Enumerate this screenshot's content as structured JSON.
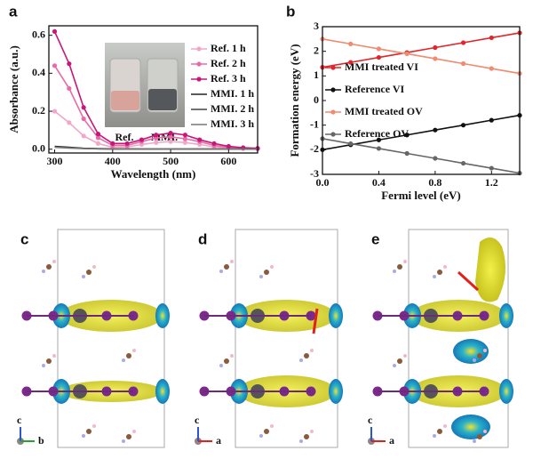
{
  "chart_data": [
    {
      "type": "line",
      "label": "a",
      "xlabel": "Wavelength (nm)",
      "ylabel": "Absorbance (a.u.)",
      "x": [
        300,
        325,
        350,
        375,
        400,
        425,
        450,
        475,
        500,
        525,
        550,
        575,
        600,
        625,
        650
      ],
      "series": [
        {
          "name": "Ref. 1 h",
          "color": "#f2a7c8",
          "marker": "o",
          "values": [
            0.2,
            0.14,
            0.07,
            0.03,
            0.01,
            0.012,
            0.025,
            0.035,
            0.04,
            0.035,
            0.025,
            0.012,
            0.006,
            0.003,
            0.002
          ]
        },
        {
          "name": "Ref. 2 h",
          "color": "#e86aa6",
          "marker": "o",
          "values": [
            0.44,
            0.32,
            0.16,
            0.06,
            0.02,
            0.02,
            0.04,
            0.06,
            0.065,
            0.055,
            0.04,
            0.02,
            0.01,
            0.005,
            0.003
          ]
        },
        {
          "name": "Ref. 3 h",
          "color": "#c8177a",
          "marker": "o",
          "values": [
            0.62,
            0.45,
            0.22,
            0.08,
            0.03,
            0.03,
            0.05,
            0.075,
            0.085,
            0.075,
            0.05,
            0.03,
            0.015,
            0.008,
            0.005
          ]
        },
        {
          "name": "MMI. 1 h",
          "color": "#222222",
          "values": [
            0.015,
            0.01,
            0.005,
            0.003,
            0.002,
            0.002,
            0.001,
            0.001,
            0.001,
            0.001,
            0.001,
            0.001,
            0.001,
            0.001,
            0.001
          ]
        },
        {
          "name": "MMI. 2 h",
          "color": "#444444",
          "values": [
            0.012,
            0.008,
            0.004,
            0.002,
            0.001,
            0.001,
            0.001,
            0.001,
            0.001,
            0.001,
            0.001,
            0.001,
            0.001,
            0.001,
            0.001
          ]
        },
        {
          "name": "MMI. 3 h",
          "color": "#777777",
          "values": [
            0.01,
            0.006,
            0.003,
            0.002,
            0.001,
            0.001,
            0.001,
            0.001,
            0.001,
            0.001,
            0.001,
            0.001,
            0.001,
            0.001,
            0.001
          ]
        }
      ],
      "annotations": [
        "Ref.",
        "MMI."
      ],
      "xlim": [
        290,
        650
      ],
      "xticks": [
        300,
        400,
        500,
        600
      ],
      "ylim": [
        -0.02,
        0.65
      ],
      "yticks": [
        {
          "value": 0,
          "label": "0.0"
        },
        0.2,
        0.4,
        0.6
      ],
      "legend": "upper right"
    },
    {
      "type": "line",
      "label": "b",
      "xlabel": "Fermi level (eV)",
      "ylabel": "Formation energy (eV)",
      "x": [
        0,
        0.2,
        0.4,
        0.6,
        0.8,
        1.0,
        1.2,
        1.4
      ],
      "series": [
        {
          "name": "MMI treated VI",
          "color": "#e0262a",
          "marker": "o",
          "values": [
            1.35,
            1.55,
            1.75,
            1.95,
            2.15,
            2.35,
            2.55,
            2.75
          ]
        },
        {
          "name": "Reference VI",
          "color": "#111111",
          "marker": "o",
          "values": [
            -2.0,
            -1.8,
            -1.6,
            -1.4,
            -1.2,
            -1.0,
            -0.8,
            -0.6
          ]
        },
        {
          "name": "MMI treated OV",
          "color": "#f08a70",
          "marker": "o",
          "values": [
            2.5,
            2.3,
            2.1,
            1.9,
            1.7,
            1.5,
            1.3,
            1.1
          ]
        },
        {
          "name": "Reference OV",
          "color": "#666666",
          "marker": "o",
          "values": [
            -1.55,
            -1.75,
            -1.95,
            -2.15,
            -2.35,
            -2.55,
            -2.75,
            -2.95
          ]
        }
      ],
      "xlim": [
        0,
        1.4
      ],
      "xticks": [
        {
          "value": 0,
          "label": "0.0"
        },
        0.4,
        0.8,
        1.2
      ],
      "ylim": [
        -3,
        3
      ],
      "yticks": [
        -3,
        -2,
        -1,
        0,
        1,
        2,
        3
      ],
      "legend": "left"
    }
  ],
  "panels": [
    {
      "label": "c",
      "axes": [
        "c",
        "b"
      ]
    },
    {
      "label": "d",
      "axes": [
        "c",
        "a"
      ]
    },
    {
      "label": "e",
      "axes": [
        "c",
        "a"
      ]
    }
  ]
}
